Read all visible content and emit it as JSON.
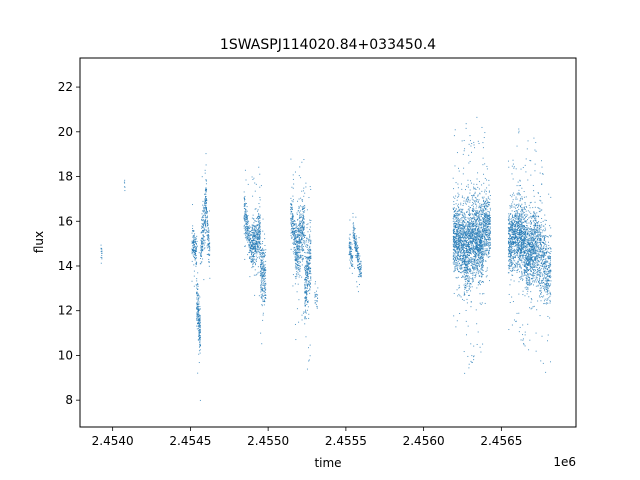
{
  "chart_data": {
    "type": "scatter",
    "title": "1SWASPJ114020.84+033450.4",
    "xlabel": "time",
    "ylabel": "flux",
    "x_offset_label": "1e6",
    "xlim": [
      2453790,
      2456980
    ],
    "ylim": [
      6.8,
      23.3
    ],
    "xticks": [
      2454000,
      2454500,
      2455000,
      2455500,
      2456000,
      2456500
    ],
    "xtick_labels": [
      "2.4540",
      "2.4545",
      "2.4550",
      "2.4555",
      "2.4560",
      "2.4565"
    ],
    "yticks": [
      8,
      10,
      12,
      14,
      16,
      18,
      20,
      22
    ],
    "ytick_labels": [
      "8",
      "10",
      "12",
      "14",
      "16",
      "18",
      "20",
      "22"
    ],
    "grid": false,
    "marker_color": "#1f77b4",
    "segments": [
      {
        "x": [
          2453924,
          2453932
        ],
        "center": [
          14.6,
          14.6
        ],
        "spread": 0.6,
        "n": 14
      },
      {
        "x": [
          2454070,
          2454080
        ],
        "center": [
          17.6,
          17.6
        ],
        "spread": 0.4,
        "n": 6
      },
      {
        "x": [
          2454510,
          2454540
        ],
        "center": [
          15.2,
          14.5
        ],
        "spread": 1.2,
        "n": 130
      },
      {
        "x": [
          2454540,
          2454565
        ],
        "center": [
          12.5,
          11.0
        ],
        "spread": 2.0,
        "n": 200
      },
      {
        "x": [
          2454565,
          2454605
        ],
        "center": [
          14.5,
          17.0
        ],
        "spread": 2.0,
        "n": 220
      },
      {
        "x": [
          2454605,
          2454625
        ],
        "center": [
          16.0,
          14.5
        ],
        "spread": 1.6,
        "n": 80
      },
      {
        "x": [
          2454845,
          2454890
        ],
        "center": [
          16.5,
          14.8
        ],
        "spread": 1.4,
        "n": 200
      },
      {
        "x": [
          2454890,
          2454950
        ],
        "center": [
          15.0,
          15.5
        ],
        "spread": 2.0,
        "n": 380
      },
      {
        "x": [
          2454950,
          2454985
        ],
        "center": [
          14.0,
          13.2
        ],
        "spread": 2.4,
        "n": 220
      },
      {
        "x": [
          2455145,
          2455175
        ],
        "center": [
          16.5,
          15.0
        ],
        "spread": 1.8,
        "n": 150
      },
      {
        "x": [
          2455175,
          2455235
        ],
        "center": [
          14.5,
          16.0
        ],
        "spread": 2.6,
        "n": 400
      },
      {
        "x": [
          2455235,
          2455275
        ],
        "center": [
          13.0,
          14.5
        ],
        "spread": 2.8,
        "n": 300
      },
      {
        "x": [
          2455300,
          2455320
        ],
        "center": [
          12.5,
          12.5
        ],
        "spread": 1.2,
        "n": 25
      },
      {
        "x": [
          2455520,
          2455545
        ],
        "center": [
          15.0,
          14.2
        ],
        "spread": 0.8,
        "n": 80
      },
      {
        "x": [
          2455545,
          2455585
        ],
        "center": [
          15.8,
          14.0
        ],
        "spread": 1.0,
        "n": 140
      },
      {
        "x": [
          2455585,
          2455600
        ],
        "center": [
          14.0,
          13.8
        ],
        "spread": 0.8,
        "n": 40
      },
      {
        "x": [
          2456190,
          2456260
        ],
        "center": [
          15.5,
          15.0
        ],
        "spread": 3.0,
        "n": 650
      },
      {
        "x": [
          2456260,
          2456330
        ],
        "center": [
          14.5,
          15.5
        ],
        "spread": 3.6,
        "n": 750
      },
      {
        "x": [
          2456330,
          2456385
        ],
        "center": [
          15.5,
          15.0
        ],
        "spread": 3.4,
        "n": 600
      },
      {
        "x": [
          2456385,
          2456430
        ],
        "center": [
          16.0,
          15.5
        ],
        "spread": 2.6,
        "n": 350
      },
      {
        "x": [
          2456545,
          2456600
        ],
        "center": [
          15.0,
          15.5
        ],
        "spread": 2.6,
        "n": 450
      },
      {
        "x": [
          2456600,
          2456660
        ],
        "center": [
          15.5,
          15.0
        ],
        "spread": 3.0,
        "n": 600
      },
      {
        "x": [
          2456660,
          2456720
        ],
        "center": [
          14.5,
          15.0
        ],
        "spread": 3.2,
        "n": 550
      },
      {
        "x": [
          2456720,
          2456790
        ],
        "center": [
          15.0,
          14.0
        ],
        "spread": 3.2,
        "n": 450
      },
      {
        "x": [
          2456790,
          2456820
        ],
        "center": [
          13.5,
          14.0
        ],
        "spread": 2.8,
        "n": 150
      }
    ]
  }
}
